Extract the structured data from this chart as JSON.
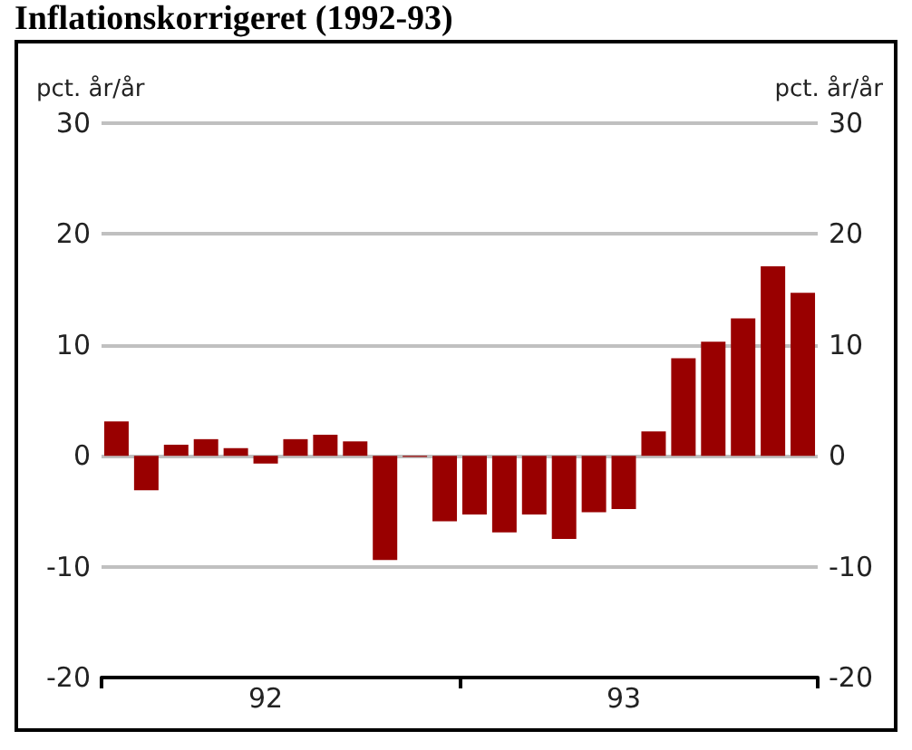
{
  "chart_data": {
    "type": "bar",
    "title": "Inflationskorrigeret (1992-93)",
    "ylabel": "pct. år/år",
    "y2label": "pct. år/år",
    "categories": [
      null,
      null,
      null,
      null,
      null,
      "92",
      null,
      null,
      null,
      null,
      null,
      null,
      null,
      null,
      null,
      null,
      null,
      "93",
      null,
      null,
      null,
      null,
      null,
      null
    ],
    "values": [
      3.1,
      -3.1,
      1.0,
      1.5,
      0.7,
      -0.7,
      1.5,
      1.9,
      1.3,
      -9.4,
      -0.1,
      -5.9,
      -5.3,
      -6.9,
      -5.3,
      -7.5,
      -5.1,
      -4.8,
      2.2,
      8.8,
      10.3,
      12.4,
      17.1,
      14.7
    ],
    "color": "#990000",
    "ylim": [
      -20,
      30
    ],
    "yticks": [
      -20,
      -10,
      0,
      10,
      20,
      30
    ],
    "y2lim": [
      -20,
      30
    ],
    "y2ticks": [
      -20,
      -10,
      0,
      10,
      20,
      30
    ],
    "grid": "y"
  }
}
